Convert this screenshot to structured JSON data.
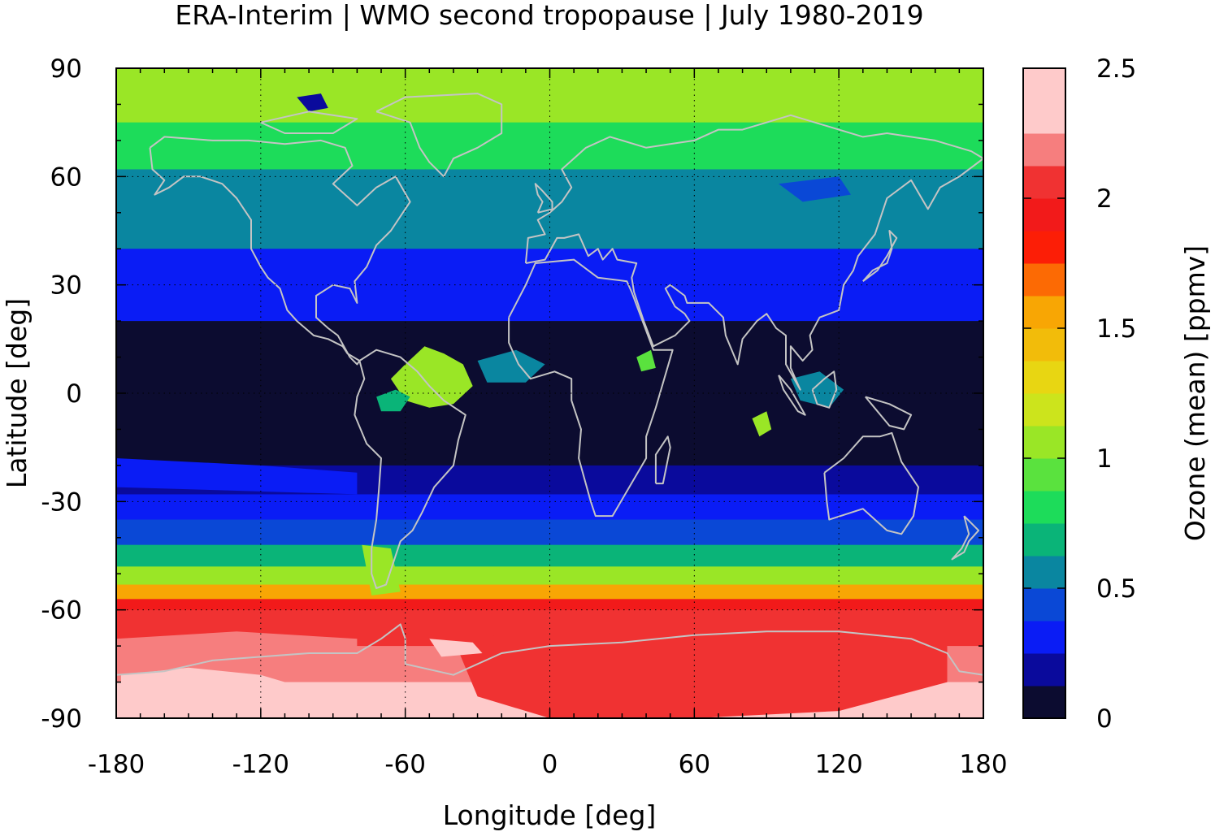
{
  "chart_data": {
    "type": "heatmap",
    "title": "ERA-Interim | WMO second tropopause | July 1980-2019",
    "xlabel": "Longitude [deg]",
    "ylabel": "Latitude [deg]",
    "xlim": [
      -180,
      180
    ],
    "ylim": [
      -90,
      90
    ],
    "x_ticks": [
      "-180",
      "-120",
      "-60",
      "0",
      "60",
      "120",
      "180"
    ],
    "y_ticks": [
      "90",
      "60",
      "30",
      "0",
      "-30",
      "-60",
      "-90"
    ],
    "x_tick_values": [
      -180,
      -120,
      -60,
      0,
      60,
      120,
      180
    ],
    "y_tick_values": [
      90,
      60,
      30,
      0,
      -30,
      -60,
      -90
    ],
    "grid": true,
    "coastlines": true,
    "colorbar": {
      "label": "Ozone (mean) [ppmv]",
      "range": [
        0,
        2.5
      ],
      "step": 0.125,
      "tick_values": [
        0,
        0.5,
        1,
        1.5,
        2,
        2.5
      ],
      "tick_labels": [
        "0",
        "0.5",
        "1",
        "1.5",
        "2",
        "2.5"
      ],
      "colors": [
        "#0c0c30",
        "#0a0a9c",
        "#0a1cf5",
        "#0a48d6",
        "#0a86a0",
        "#0ab478",
        "#1ddc5a",
        "#5ae23e",
        "#9ae626",
        "#cce41c",
        "#e8d612",
        "#f2bc0a",
        "#f8a604",
        "#fc6a04",
        "#fc1e06",
        "#f21a1a",
        "#f03232",
        "#f67e7e",
        "#fecaca"
      ]
    },
    "latitude_band_means_ppmv": [
      {
        "lat": [
          75,
          90
        ],
        "value": 1.0
      },
      {
        "lat": [
          62,
          75
        ],
        "value": 0.75
      },
      {
        "lat": [
          50,
          62
        ],
        "value": 0.6
      },
      {
        "lat": [
          40,
          50
        ],
        "value": 0.5
      },
      {
        "lat": [
          33,
          40
        ],
        "value": 0.35
      },
      {
        "lat": [
          20,
          33
        ],
        "value": 0.25
      },
      {
        "lat": [
          -20,
          20
        ],
        "value": 0.05
      },
      {
        "lat": [
          -28,
          -20
        ],
        "value": 0.2
      },
      {
        "lat": [
          -35,
          -28
        ],
        "value": 0.3
      },
      {
        "lat": [
          -42,
          -35
        ],
        "value": 0.45
      },
      {
        "lat": [
          -48,
          -42
        ],
        "value": 0.7
      },
      {
        "lat": [
          -53,
          -48
        ],
        "value": 1.1
      },
      {
        "lat": [
          -57,
          -53
        ],
        "value": 1.5
      },
      {
        "lat": [
          -60,
          -57
        ],
        "value": 1.9
      },
      {
        "lat": [
          -70,
          -60
        ],
        "value": 2.1
      },
      {
        "lat": [
          -80,
          -70
        ],
        "value": 2.2
      },
      {
        "lat": [
          -90,
          -80
        ],
        "value": 2.35
      }
    ]
  }
}
